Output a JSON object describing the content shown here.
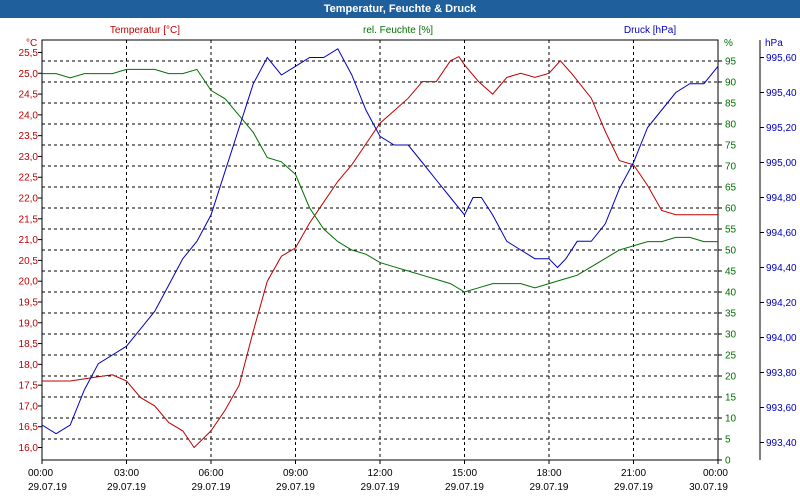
{
  "window": {
    "title": "Temperatur, Feuchte & Druck"
  },
  "colors": {
    "temp": "#c00000",
    "hum": "#007000",
    "press": "#0000c0",
    "axis": "#000000",
    "title_bg": "#1f5f9c"
  },
  "chart_data": {
    "type": "line",
    "title": "Temperatur, Feuchte & Druck",
    "series_labels": {
      "temp": "Temperatur [°C]",
      "hum": "rel. Feuchte [%]",
      "press": "Druck [hPa]"
    },
    "units": {
      "temp": "°C",
      "hum": "%",
      "press": "hPa"
    },
    "axes": {
      "temp": {
        "ylim": [
          15.7,
          25.8
        ],
        "ticks": [
          "16,0",
          "16,5",
          "17,0",
          "17,5",
          "18,0",
          "18,5",
          "19,0",
          "19,5",
          "20,0",
          "20,5",
          "21,0",
          "21,5",
          "22,0",
          "22,5",
          "23,0",
          "23,5",
          "24,0",
          "24,5",
          "25,0",
          "25,5"
        ]
      },
      "hum": {
        "ylim": [
          0,
          100
        ],
        "ticks": [
          "0",
          "5",
          "10",
          "15",
          "20",
          "25",
          "30",
          "35",
          "40",
          "45",
          "50",
          "55",
          "60",
          "65",
          "70",
          "75",
          "80",
          "85",
          "90",
          "95"
        ]
      },
      "press": {
        "ylim": [
          993.3,
          995.7
        ],
        "ticks": [
          "993,40",
          "993,60",
          "993,80",
          "994,00",
          "994,20",
          "994,40",
          "994,60",
          "994,80",
          "995,00",
          "995,20",
          "995,40",
          "995,60"
        ]
      }
    },
    "x_ticks": [
      {
        "time": "00:00",
        "date": "29.07.19"
      },
      {
        "time": "03:00",
        "date": "29.07.19"
      },
      {
        "time": "06:00",
        "date": "29.07.19"
      },
      {
        "time": "09:00",
        "date": "29.07.19"
      },
      {
        "time": "12:00",
        "date": "29.07.19"
      },
      {
        "time": "15:00",
        "date": "29.07.19"
      },
      {
        "time": "18:00",
        "date": "29.07.19"
      },
      {
        "time": "21:00",
        "date": "29.07.19"
      },
      {
        "time": "00:00",
        "date": "30.07.19"
      }
    ],
    "xlim_hours": [
      0,
      24
    ],
    "series": [
      {
        "key": "temp",
        "name": "Temperatur [°C]",
        "axis": "temp",
        "points": [
          [
            0,
            17.6
          ],
          [
            0.5,
            17.6
          ],
          [
            1,
            17.6
          ],
          [
            1.5,
            17.65
          ],
          [
            2,
            17.7
          ],
          [
            2.5,
            17.75
          ],
          [
            3,
            17.6
          ],
          [
            3.5,
            17.2
          ],
          [
            4,
            17.0
          ],
          [
            4.5,
            16.6
          ],
          [
            5,
            16.4
          ],
          [
            5.4,
            16.0
          ],
          [
            6,
            16.4
          ],
          [
            6.5,
            16.9
          ],
          [
            7,
            17.5
          ],
          [
            7.5,
            18.8
          ],
          [
            8,
            20.0
          ],
          [
            8.5,
            20.6
          ],
          [
            9,
            20.8
          ],
          [
            9.5,
            21.4
          ],
          [
            10,
            21.9
          ],
          [
            10.5,
            22.4
          ],
          [
            11,
            22.8
          ],
          [
            11.5,
            23.3
          ],
          [
            12,
            23.8
          ],
          [
            12.5,
            24.1
          ],
          [
            13,
            24.4
          ],
          [
            13.5,
            24.8
          ],
          [
            14,
            24.8
          ],
          [
            14.5,
            25.3
          ],
          [
            14.8,
            25.4
          ],
          [
            15,
            25.2
          ],
          [
            15.5,
            24.8
          ],
          [
            16,
            24.5
          ],
          [
            16.5,
            24.9
          ],
          [
            17,
            25.0
          ],
          [
            17.5,
            24.9
          ],
          [
            18,
            25.0
          ],
          [
            18.4,
            25.3
          ],
          [
            18.8,
            25.0
          ],
          [
            19.5,
            24.4
          ],
          [
            20,
            23.6
          ],
          [
            20.5,
            22.9
          ],
          [
            21,
            22.8
          ],
          [
            21.5,
            22.3
          ],
          [
            22,
            21.7
          ],
          [
            22.5,
            21.6
          ],
          [
            23,
            21.6
          ],
          [
            23.5,
            21.6
          ],
          [
            24,
            21.6
          ]
        ]
      },
      {
        "key": "hum",
        "name": "rel. Feuchte [%]",
        "axis": "hum",
        "points": [
          [
            0,
            92
          ],
          [
            0.5,
            92
          ],
          [
            1,
            91
          ],
          [
            1.5,
            92
          ],
          [
            2,
            92
          ],
          [
            2.5,
            92
          ],
          [
            3,
            93
          ],
          [
            3.5,
            93
          ],
          [
            4,
            93
          ],
          [
            4.5,
            92
          ],
          [
            5,
            92
          ],
          [
            5.5,
            93
          ],
          [
            6,
            88
          ],
          [
            6.5,
            86
          ],
          [
            7,
            82
          ],
          [
            7.5,
            78
          ],
          [
            8,
            72
          ],
          [
            8.5,
            71
          ],
          [
            9,
            68
          ],
          [
            9.5,
            60
          ],
          [
            10,
            55
          ],
          [
            10.5,
            52
          ],
          [
            11,
            50
          ],
          [
            11.5,
            49
          ],
          [
            12,
            47
          ],
          [
            12.5,
            46
          ],
          [
            13,
            45
          ],
          [
            13.5,
            44
          ],
          [
            14,
            43
          ],
          [
            14.5,
            42
          ],
          [
            15,
            40
          ],
          [
            15.5,
            41
          ],
          [
            16,
            42
          ],
          [
            16.5,
            42
          ],
          [
            17,
            42
          ],
          [
            17.5,
            41
          ],
          [
            18,
            42
          ],
          [
            18.5,
            43
          ],
          [
            19,
            44
          ],
          [
            19.5,
            46
          ],
          [
            20,
            48
          ],
          [
            20.5,
            50
          ],
          [
            21,
            51
          ],
          [
            21.5,
            52
          ],
          [
            22,
            52
          ],
          [
            22.5,
            53
          ],
          [
            23,
            53
          ],
          [
            23.5,
            52
          ],
          [
            24,
            52
          ]
        ]
      },
      {
        "key": "press",
        "name": "Druck [hPa]",
        "axis": "press",
        "points": [
          [
            0,
            993.5
          ],
          [
            0.5,
            993.45
          ],
          [
            1,
            993.5
          ],
          [
            1.5,
            993.7
          ],
          [
            2,
            993.85
          ],
          [
            2.5,
            993.9
          ],
          [
            3,
            993.95
          ],
          [
            3.5,
            994.05
          ],
          [
            4,
            994.15
          ],
          [
            4.5,
            994.3
          ],
          [
            5,
            994.45
          ],
          [
            5.5,
            994.55
          ],
          [
            6,
            994.7
          ],
          [
            6.5,
            994.95
          ],
          [
            7,
            995.2
          ],
          [
            7.5,
            995.45
          ],
          [
            8,
            995.6
          ],
          [
            8.5,
            995.5
          ],
          [
            9,
            995.55
          ],
          [
            9.5,
            995.6
          ],
          [
            10,
            995.6
          ],
          [
            10.5,
            995.65
          ],
          [
            11,
            995.5
          ],
          [
            11.5,
            995.3
          ],
          [
            12,
            995.15
          ],
          [
            12.5,
            995.1
          ],
          [
            13,
            995.1
          ],
          [
            13.5,
            995.0
          ],
          [
            14,
            994.9
          ],
          [
            14.5,
            994.8
          ],
          [
            15,
            994.7
          ],
          [
            15.3,
            994.8
          ],
          [
            15.6,
            994.8
          ],
          [
            16,
            994.7
          ],
          [
            16.5,
            994.55
          ],
          [
            17,
            994.5
          ],
          [
            17.5,
            994.45
          ],
          [
            18,
            994.45
          ],
          [
            18.3,
            994.4
          ],
          [
            18.6,
            994.45
          ],
          [
            19,
            994.55
          ],
          [
            19.5,
            994.55
          ],
          [
            20,
            994.65
          ],
          [
            20.5,
            994.85
          ],
          [
            21,
            995.0
          ],
          [
            21.5,
            995.2
          ],
          [
            22,
            995.3
          ],
          [
            22.5,
            995.4
          ],
          [
            23,
            995.45
          ],
          [
            23.5,
            995.45
          ],
          [
            24,
            995.55
          ]
        ]
      }
    ]
  }
}
